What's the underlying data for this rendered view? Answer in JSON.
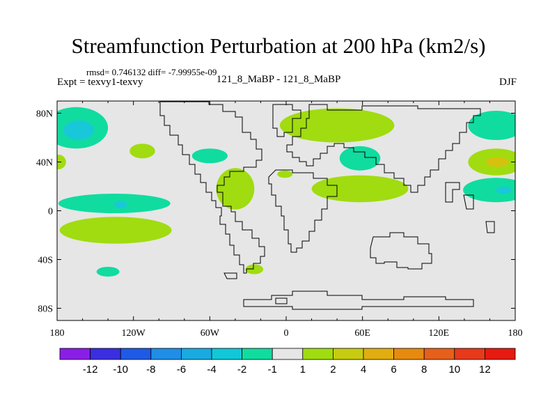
{
  "chart_data": {
    "type": "map",
    "title": "Streamfunction Perturbation at 200 hPa (km2/s)",
    "stats_text": "rmsd= 0.746132 diff= -7.99955e-09",
    "left_label": "Expt = texvy1-texvy",
    "center_label": "121_8_MaBP - 121_8_MaBP",
    "right_label": "DJF",
    "x_ticks": [
      "180",
      "120W",
      "60W",
      "0",
      "60E",
      "120E",
      "180"
    ],
    "x_tick_values": [
      -180,
      -120,
      -60,
      0,
      60,
      120,
      180
    ],
    "y_ticks": [
      "80N",
      "40N",
      "0",
      "40S",
      "80S"
    ],
    "y_tick_values": [
      80,
      40,
      0,
      -40,
      -80
    ],
    "xlim": [
      -180,
      180
    ],
    "ylim": [
      -90,
      90
    ],
    "colorbar": {
      "labels": [
        "-12",
        "-10",
        "-8",
        "-6",
        "-4",
        "-2",
        "-1",
        "1",
        "2",
        "4",
        "6",
        "8",
        "10",
        "12"
      ],
      "colors": [
        "#8a1ee6",
        "#3a2ee0",
        "#1e5ae6",
        "#1e8ee6",
        "#18aae0",
        "#10c8d8",
        "#10dca0",
        "#e6e6e6",
        "#a0dc10",
        "#c8cc10",
        "#e0ae10",
        "#e68a10",
        "#e6601a",
        "#e63a1a",
        "#e61a10"
      ]
    },
    "regions": [
      {
        "level": "-2",
        "color": "#10dca0",
        "lon": -165,
        "lat": 68,
        "rlon": 25,
        "rlat": 17
      },
      {
        "level": "-4",
        "color": "#18c8d8",
        "lon": -163,
        "lat": 66,
        "rlon": 12,
        "rlat": 8
      },
      {
        "level": "-2",
        "color": "#10dca0",
        "lon": -135,
        "lat": 6,
        "rlon": 44,
        "rlat": 8
      },
      {
        "level": "-4",
        "color": "#18c8d8",
        "lon": -130,
        "lat": 5,
        "rlon": 5,
        "rlat": 3
      },
      {
        "level": "-2",
        "color": "#10dca0",
        "lon": -60,
        "lat": 45,
        "rlon": 14,
        "rlat": 6
      },
      {
        "level": "-2",
        "color": "#10dca0",
        "lon": 58,
        "lat": 43,
        "rlon": 16,
        "rlat": 10
      },
      {
        "level": "-2",
        "color": "#10dca0",
        "lon": 165,
        "lat": 17,
        "rlon": 26,
        "rlat": 10
      },
      {
        "level": "-4",
        "color": "#18c8d8",
        "lon": 171,
        "lat": 17,
        "rlon": 6,
        "rlat": 3
      },
      {
        "level": "-2",
        "color": "#10dca0",
        "lon": 165,
        "lat": 70,
        "rlon": 22,
        "rlat": 12
      },
      {
        "level": "-2",
        "color": "#10dca0",
        "lon": -140,
        "lat": -50,
        "rlon": 9,
        "rlat": 4
      },
      {
        "level": "2",
        "color": "#a0dc10",
        "lon": 40,
        "lat": 70,
        "rlon": 45,
        "rlat": 14
      },
      {
        "level": "2",
        "color": "#a0dc10",
        "lon": 58,
        "lat": 18,
        "rlon": 38,
        "rlat": 11
      },
      {
        "level": "2",
        "color": "#a0dc10",
        "lon": -40,
        "lat": 18,
        "rlon": 15,
        "rlat": 17
      },
      {
        "level": "2",
        "color": "#a0dc10",
        "lon": -134,
        "lat": -16,
        "rlon": 44,
        "rlat": 11
      },
      {
        "level": "2",
        "color": "#a0dc10",
        "lon": -113,
        "lat": 49,
        "rlon": 10,
        "rlat": 6
      },
      {
        "level": "2",
        "color": "#a0dc10",
        "lon": -179,
        "lat": 40,
        "rlon": 6,
        "rlat": 6
      },
      {
        "level": "2",
        "color": "#a0dc10",
        "lon": 165,
        "lat": 40,
        "rlon": 22,
        "rlat": 11
      },
      {
        "level": "4",
        "color": "#d6c20e",
        "lon": 166,
        "lat": 40,
        "rlon": 9,
        "rlat": 4
      },
      {
        "level": "2",
        "color": "#a0dc10",
        "lon": -1,
        "lat": 30,
        "rlon": 6,
        "rlat": 3
      },
      {
        "level": "2",
        "color": "#a0dc10",
        "lon": -25,
        "lat": -48,
        "rlon": 7,
        "rlat": 4
      }
    ]
  }
}
